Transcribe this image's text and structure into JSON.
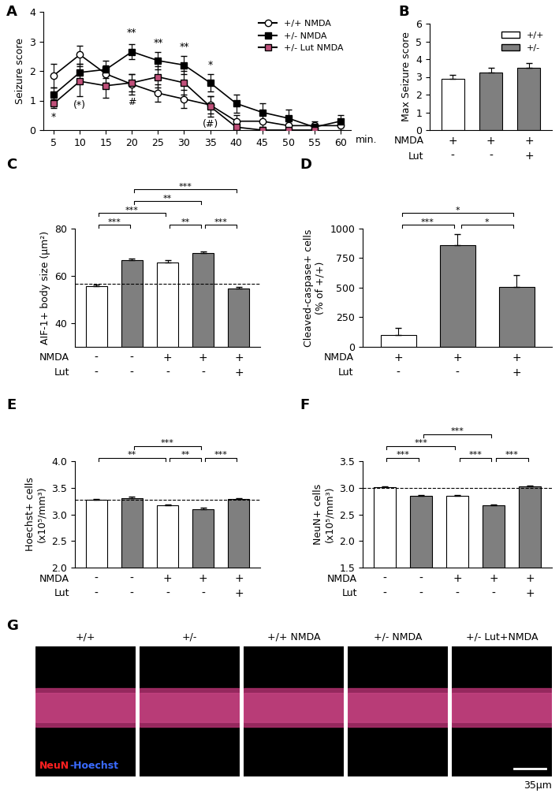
{
  "chart_data": [
    {
      "panel": "A",
      "type": "line",
      "y_label": "Seizure score",
      "x_label": "min.",
      "x": [
        5,
        10,
        15,
        20,
        25,
        30,
        35,
        40,
        45,
        50,
        55,
        60
      ],
      "xlim": [
        3,
        62
      ],
      "xticks": [
        5,
        10,
        15,
        20,
        25,
        30,
        35,
        40,
        45,
        50,
        55,
        60
      ],
      "ylim": [
        0,
        4
      ],
      "yticks": [
        0,
        1,
        2,
        3,
        4
      ],
      "legend": "upper right",
      "series": [
        {
          "name": "+/+ NMDA",
          "color": "#ffffff",
          "marker": "circle",
          "values": [
            1.85,
            2.55,
            1.9,
            1.55,
            1.25,
            1.05,
            0.85,
            0.3,
            0.3,
            0.15,
            0.15,
            0.15
          ],
          "errors": [
            0.4,
            0.3,
            0.3,
            0.35,
            0.3,
            0.3,
            0.3,
            0.2,
            0.2,
            0.15,
            0.15,
            0.15
          ]
        },
        {
          "name": "+/- NMDA",
          "color": "#000000",
          "marker": "square",
          "values": [
            1.2,
            1.95,
            2.05,
            2.65,
            2.35,
            2.2,
            1.6,
            0.9,
            0.6,
            0.4,
            0.1,
            0.3
          ],
          "errors": [
            0.25,
            0.3,
            0.3,
            0.25,
            0.3,
            0.3,
            0.3,
            0.3,
            0.3,
            0.3,
            0.1,
            0.2
          ]
        },
        {
          "name": "+/- Lut NMDA",
          "color": "#c0507a",
          "marker": "square",
          "values": [
            0.9,
            1.65,
            1.5,
            1.6,
            1.8,
            1.6,
            0.8,
            0.1,
            0.0,
            0.0,
            0.0,
            null
          ],
          "errors": [
            0.15,
            0.5,
            0.4,
            0.3,
            0.35,
            0.4,
            0.35,
            0.1,
            0.0,
            0.0,
            0.0,
            null
          ]
        }
      ],
      "annotations": [
        {
          "x": 20,
          "y": 3.3,
          "text": "**"
        },
        {
          "x": 25,
          "y": 2.95,
          "text": "**"
        },
        {
          "x": 30,
          "y": 2.8,
          "text": "**"
        },
        {
          "x": 35,
          "y": 2.2,
          "text": "*"
        },
        {
          "x": 5,
          "y": 0.45,
          "text": "*"
        },
        {
          "x": 10,
          "y": 0.85,
          "text": "(*)"
        },
        {
          "x": 20,
          "y": 0.95,
          "text": "#"
        },
        {
          "x": 35,
          "y": 0.2,
          "text": "(#)"
        }
      ]
    },
    {
      "panel": "B",
      "type": "bar",
      "y_label": "Max Seizure score",
      "categories": [
        null,
        null,
        null
      ],
      "values": [
        2.9,
        3.25,
        3.5
      ],
      "errors": [
        0.2,
        0.25,
        0.3
      ],
      "colors": [
        "#ffffff",
        "#7f7f7f",
        "#7f7f7f"
      ],
      "ylim": [
        0,
        6
      ],
      "yticks": [
        0,
        1,
        2,
        3,
        4,
        5,
        6
      ],
      "legend": "upper right",
      "legend_entries": [
        {
          "name": "+/+",
          "color": "#ffffff"
        },
        {
          "name": "+/-",
          "color": "#7f7f7f"
        }
      ],
      "condition_rows": [
        {
          "label": "NMDA",
          "values": [
            "+",
            "+",
            "+"
          ]
        },
        {
          "label": "Lut",
          "values": [
            "-",
            "-",
            "+"
          ]
        }
      ],
      "significance": []
    },
    {
      "panel": "C",
      "type": "bar",
      "y_label": "AIF-1+ body size (µm²)",
      "categories": [
        null,
        null,
        null,
        null,
        null
      ],
      "values": [
        55.5,
        66.5,
        65.5,
        69.5,
        54.5
      ],
      "errors": [
        0.7,
        0.7,
        1.2,
        0.8,
        0.7
      ],
      "colors": [
        "#ffffff",
        "#7f7f7f",
        "#ffffff",
        "#7f7f7f",
        "#7f7f7f"
      ],
      "ylim": [
        30,
        80
      ],
      "yticks": [
        40,
        60,
        80
      ],
      "reference_line": 56.5,
      "condition_rows": [
        {
          "label": "NMDA",
          "values": [
            "-",
            "-",
            "+",
            "+",
            "+"
          ]
        },
        {
          "label": "Lut",
          "values": [
            "-",
            "-",
            "-",
            "-",
            "+"
          ]
        }
      ],
      "significance": [
        {
          "from": 0,
          "to": 1,
          "text": "***"
        },
        {
          "from": 2,
          "to": 3,
          "text": "**"
        },
        {
          "from": 3,
          "to": 4,
          "text": "***"
        },
        {
          "from": 0,
          "to": 2,
          "text": "***"
        },
        {
          "from": 1,
          "to": 3,
          "text": "**"
        },
        {
          "from": 1,
          "to": 4,
          "text": "***"
        }
      ]
    },
    {
      "panel": "D",
      "type": "bar",
      "y_label": "Cleaved-caspase+ cells\n(% of +/+)",
      "categories": [
        null,
        null,
        null
      ],
      "values": [
        100,
        860,
        505
      ],
      "errors": [
        60,
        90,
        100
      ],
      "colors": [
        "#ffffff",
        "#7f7f7f",
        "#7f7f7f"
      ],
      "ylim": [
        0,
        1000
      ],
      "yticks": [
        0,
        250,
        500,
        750,
        1000
      ],
      "condition_rows": [
        {
          "label": "NMDA",
          "values": [
            "+",
            "+",
            "+"
          ]
        },
        {
          "label": "Lut",
          "values": [
            "-",
            "-",
            "+"
          ]
        }
      ],
      "significance": [
        {
          "from": 0,
          "to": 1,
          "text": "***"
        },
        {
          "from": 1,
          "to": 2,
          "text": "*"
        },
        {
          "from": 0,
          "to": 2,
          "text": "*"
        }
      ]
    },
    {
      "panel": "E",
      "type": "bar",
      "y_label": "Hoechst+ cells\n(x10⁵/mm³)",
      "categories": [
        null,
        null,
        null,
        null,
        null
      ],
      "values": [
        3.27,
        3.31,
        3.17,
        3.09,
        3.29
      ],
      "errors": [
        0.02,
        0.03,
        0.02,
        0.03,
        0.02
      ],
      "colors": [
        "#ffffff",
        "#7f7f7f",
        "#ffffff",
        "#7f7f7f",
        "#7f7f7f"
      ],
      "ylim": [
        2.0,
        4.0
      ],
      "yticks": [
        {
          "value": 2.0,
          "label": "2.0"
        },
        {
          "value": 2.5,
          "label": "2.5"
        },
        {
          "value": 3.0,
          "label": "3.0"
        },
        {
          "value": 3.5,
          "label": "3.5"
        },
        {
          "value": 4.0,
          "label": "4.0"
        }
      ],
      "reference_line": 3.27,
      "condition_rows": [
        {
          "label": "NMDA",
          "values": [
            "-",
            "-",
            "+",
            "+",
            "+"
          ]
        },
        {
          "label": "Lut",
          "values": [
            "-",
            "-",
            "-",
            "-",
            "+"
          ]
        }
      ],
      "significance": [
        {
          "from": 0,
          "to": 2,
          "text": "**"
        },
        {
          "from": 2,
          "to": 3,
          "text": "**"
        },
        {
          "from": 3,
          "to": 4,
          "text": "***"
        },
        {
          "from": 1,
          "to": 3,
          "text": "***"
        }
      ]
    },
    {
      "panel": "F",
      "type": "bar",
      "y_label": "NeuN+ cells\n(x10⁵/mm³)",
      "categories": [
        null,
        null,
        null,
        null,
        null
      ],
      "values": [
        3.01,
        2.85,
        2.85,
        2.67,
        3.02
      ],
      "errors": [
        0.02,
        0.02,
        0.02,
        0.02,
        0.02
      ],
      "colors": [
        "#ffffff",
        "#7f7f7f",
        "#ffffff",
        "#7f7f7f",
        "#7f7f7f"
      ],
      "ylim": [
        1.5,
        3.5
      ],
      "yticks": [
        {
          "value": 1.5,
          "label": "1.5"
        },
        {
          "value": 2.0,
          "label": "2.0"
        },
        {
          "value": 2.5,
          "label": "2.5"
        },
        {
          "value": 3.0,
          "label": "3.0"
        },
        {
          "value": 3.5,
          "label": "3.5"
        }
      ],
      "reference_line": 3.0,
      "condition_rows": [
        {
          "label": "NMDA",
          "values": [
            "-",
            "-",
            "+",
            "+",
            "+"
          ]
        },
        {
          "label": "Lut",
          "values": [
            "-",
            "-",
            "-",
            "-",
            "+"
          ]
        }
      ],
      "significance": [
        {
          "from": 0,
          "to": 1,
          "text": "***"
        },
        {
          "from": 2,
          "to": 3,
          "text": "***"
        },
        {
          "from": 3,
          "to": 4,
          "text": "***"
        },
        {
          "from": 0,
          "to": 2,
          "text": "***"
        },
        {
          "from": 1,
          "to": 3,
          "text": "***"
        }
      ]
    }
  ],
  "image_panel": {
    "panel": "G",
    "titles": [
      "+/+",
      "+/-",
      "+/+ NMDA",
      "+/- NMDA",
      "+/- Lut+NMDA"
    ],
    "stain_labels": [
      {
        "text": "NeuN",
        "color": "#ff2020"
      },
      {
        "text": "-Hoechst",
        "color": "#3a6bff"
      }
    ],
    "scale_bar": "35µm"
  }
}
